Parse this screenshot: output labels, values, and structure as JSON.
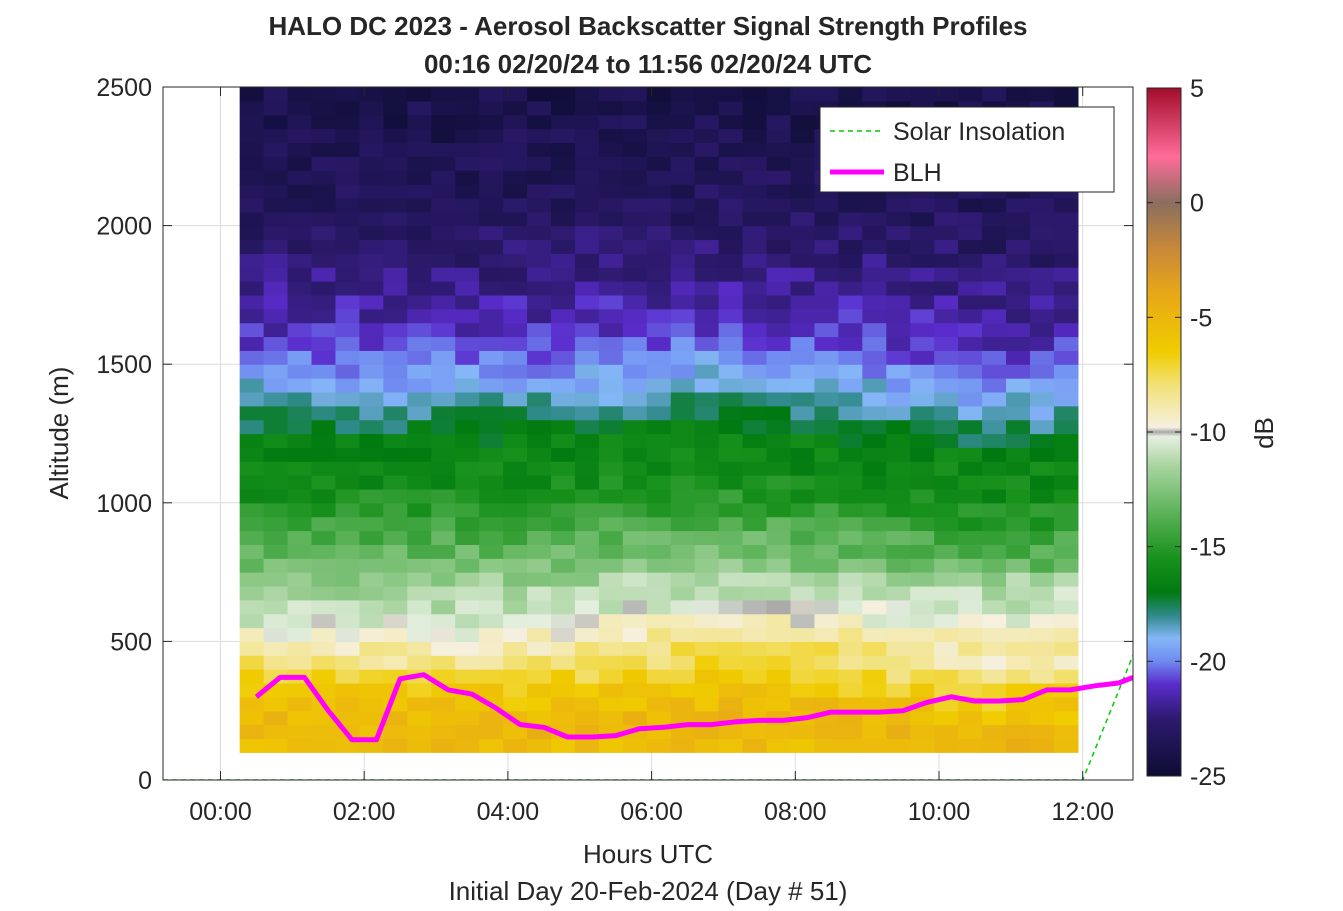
{
  "chart_data": {
    "type": "heatmap",
    "title_line1": "HALO DC 2023 - Aerosol Backscatter Signal Strength Profiles",
    "title_line2": "00:16 02/20/24 to 11:56 02/20/24  UTC",
    "xlabel": "Hours UTC",
    "xlabel2": "Initial Day 20-Feb-2024 (Day # 51)",
    "ylabel": "Altitude (m)",
    "xlim": [
      -0.8,
      12.7
    ],
    "ylim": [
      0,
      2500
    ],
    "x_ticks": [
      0,
      2,
      4,
      6,
      8,
      10,
      12
    ],
    "x_tick_labels": [
      "00:00",
      "02:00",
      "04:00",
      "06:00",
      "08:00",
      "10:00",
      "12:00"
    ],
    "y_ticks": [
      0,
      500,
      1000,
      1500,
      2000,
      2500
    ],
    "y_tick_labels": [
      "0",
      "500",
      "1000",
      "1500",
      "2000",
      "2500"
    ],
    "grid": true,
    "colorbar": {
      "label": "dB",
      "range": [
        -25,
        5
      ],
      "ticks": [
        5,
        0,
        -5,
        -10,
        -15,
        -20,
        -25
      ],
      "tick_labels": [
        "5",
        "0",
        "-5",
        "-10",
        "-15",
        "-20",
        "-25"
      ],
      "colors": [
        {
          "value": -25,
          "color": "#0d0d33"
        },
        {
          "value": -22.5,
          "color": "#2d1a6e"
        },
        {
          "value": -21,
          "color": "#5a2ccc"
        },
        {
          "value": -20,
          "color": "#6f8af0"
        },
        {
          "value": -19,
          "color": "#85b7f7"
        },
        {
          "value": -18,
          "color": "#2f8a8a"
        },
        {
          "value": -17,
          "color": "#007a10"
        },
        {
          "value": -15.5,
          "color": "#18911c"
        },
        {
          "value": -13.5,
          "color": "#5db35a"
        },
        {
          "value": -11.5,
          "color": "#a8d4a0"
        },
        {
          "value": -10.2,
          "color": "#e6efe0"
        },
        {
          "value": -10,
          "color": "#a8a8a8"
        },
        {
          "value": -9.8,
          "color": "#f5f0e0"
        },
        {
          "value": -8,
          "color": "#f2e27a"
        },
        {
          "value": -6.5,
          "color": "#f0cc00"
        },
        {
          "value": -4,
          "color": "#e8a817"
        },
        {
          "value": -2,
          "color": "#c8883a"
        },
        {
          "value": 0,
          "color": "#8a6e5e"
        },
        {
          "value": 2,
          "color": "#ff6c9a"
        },
        {
          "value": 5,
          "color": "#a30d2b"
        }
      ]
    },
    "heatmap": {
      "time_start": 0.267,
      "time_end": 11.933,
      "n_time": 35,
      "alt_start": 100,
      "alt_end": 2500,
      "alt_step": 50,
      "profile": [
        {
          "alt": 100,
          "db": -5.5
        },
        {
          "alt": 200,
          "db": -5.0
        },
        {
          "alt": 300,
          "db": -6.0
        },
        {
          "alt": 400,
          "db": -7.5
        },
        {
          "alt": 500,
          "db": -9.5
        },
        {
          "alt": 600,
          "db": -11.0
        },
        {
          "alt": 700,
          "db": -12.0
        },
        {
          "alt": 800,
          "db": -13.0
        },
        {
          "alt": 900,
          "db": -14.0
        },
        {
          "alt": 1000,
          "db": -15.3
        },
        {
          "alt": 1100,
          "db": -16.0
        },
        {
          "alt": 1200,
          "db": -16.3
        },
        {
          "alt": 1300,
          "db": -17.5
        },
        {
          "alt": 1400,
          "db": -18.8
        },
        {
          "alt": 1500,
          "db": -19.8
        },
        {
          "alt": 1600,
          "db": -21.0
        },
        {
          "alt": 1700,
          "db": -21.5
        },
        {
          "alt": 1800,
          "db": -22.0
        },
        {
          "alt": 1900,
          "db": -22.6
        },
        {
          "alt": 2000,
          "db": -23.0
        },
        {
          "alt": 2200,
          "db": -23.5
        },
        {
          "alt": 2500,
          "db": -24.0
        }
      ]
    },
    "series": [
      {
        "name": "Solar Insolation",
        "style": "dashed",
        "color": "#00cc00",
        "x": [
          -0.8,
          12.0,
          12.7
        ],
        "y": [
          0,
          0,
          450
        ]
      },
      {
        "name": "BLH",
        "style": "solid",
        "color": "#ff00ff",
        "x": [
          0.5,
          0.83,
          1.17,
          1.5,
          1.83,
          2.17,
          2.5,
          2.83,
          3.17,
          3.5,
          3.83,
          4.17,
          4.5,
          4.83,
          5.17,
          5.5,
          5.83,
          6.17,
          6.5,
          6.83,
          7.17,
          7.5,
          7.83,
          8.17,
          8.5,
          8.83,
          9.17,
          9.5,
          9.83,
          10.17,
          10.5,
          10.83,
          11.17,
          11.5,
          11.83,
          12.17,
          12.5,
          12.7
        ],
        "y": [
          300,
          370,
          370,
          250,
          145,
          145,
          365,
          380,
          325,
          310,
          260,
          200,
          190,
          155,
          155,
          160,
          185,
          190,
          200,
          200,
          210,
          215,
          215,
          225,
          245,
          245,
          245,
          250,
          280,
          300,
          285,
          285,
          290,
          325,
          325,
          340,
          350,
          370
        ]
      }
    ],
    "legend": {
      "placement": "top-right",
      "entries": [
        "Solar Insolation",
        "BLH"
      ]
    }
  }
}
